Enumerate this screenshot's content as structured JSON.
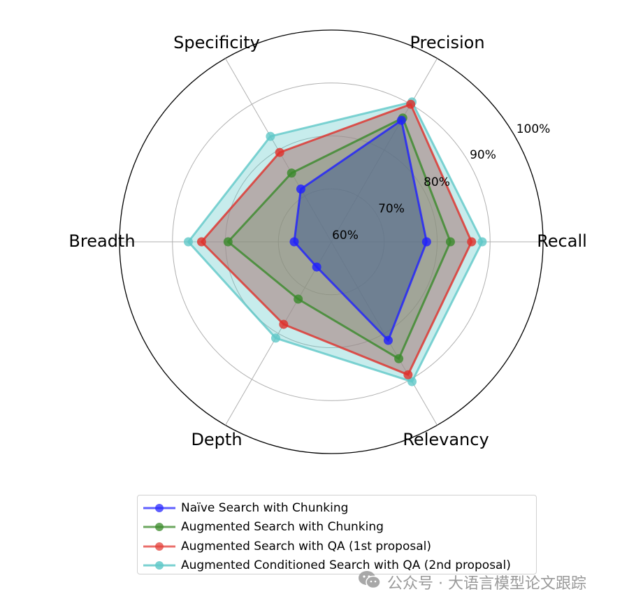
{
  "chart_data": {
    "type": "radar",
    "title": "",
    "axes": [
      "Recall",
      "Precision",
      "Specificity",
      "Breadth",
      "Depth",
      "Relevancy"
    ],
    "rlim": [
      60,
      100
    ],
    "r_ticks": [
      60,
      70,
      80,
      90,
      100
    ],
    "r_tick_labels": [
      "60%",
      "70%",
      "80%",
      "90%",
      "100%"
    ],
    "grid": true,
    "legend_position": "below",
    "series": [
      {
        "name": "Naïve Search with Chunking",
        "color": "#1f1fff",
        "values": [
          78,
          86.5,
          71.5,
          67,
          65.5,
          81.5
        ]
      },
      {
        "name": "Augmented Search with Chunking",
        "color": "#3a8a2a",
        "values": [
          82.5,
          87,
          75,
          79.5,
          72.5,
          85.5
        ]
      },
      {
        "name": "Augmented Search with QA (1st proposal)",
        "color": "#e0302a",
        "values": [
          86.5,
          90,
          79.5,
          84.5,
          78,
          89
        ]
      },
      {
        "name": "Augmented Conditioned Search with QA (2nd proposal)",
        "color": "#5fc8c8",
        "values": [
          88.5,
          90.5,
          83,
          87,
          81,
          90.5
        ]
      }
    ]
  },
  "legend": {
    "items": [
      {
        "label": "Naïve Search with Chunking",
        "color": "#2a2aff"
      },
      {
        "label": "Augmented Search with Chunking",
        "color": "#3a8a2a"
      },
      {
        "label": "Augmented Search with QA (1st proposal)",
        "color": "#e3403a"
      },
      {
        "label": "Augmented Conditioned Search with QA (2nd proposal)",
        "color": "#62c9c9"
      }
    ]
  },
  "watermark": {
    "text": "公众号 · 大语言模型论文跟踪",
    "icon": "wechat-icon"
  }
}
